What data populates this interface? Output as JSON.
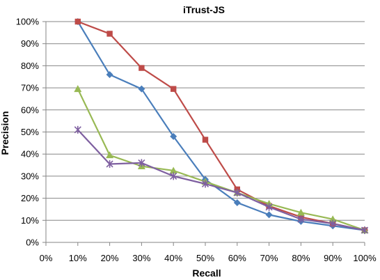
{
  "chart_data": {
    "type": "line",
    "title": "iTrust-JS",
    "xlabel": "Recall",
    "ylabel": "Precision",
    "x_ticks": [
      "0%",
      "10%",
      "20%",
      "30%",
      "40%",
      "50%",
      "60%",
      "70%",
      "80%",
      "90%",
      "100%"
    ],
    "y_ticks": [
      "0%",
      "10%",
      "20%",
      "30%",
      "40%",
      "50%",
      "60%",
      "70%",
      "80%",
      "90%",
      "100%"
    ],
    "xlim": [
      0,
      100
    ],
    "ylim": [
      0,
      100
    ],
    "grid": "horizontal",
    "legend": "none",
    "x": [
      10,
      20,
      30,
      40,
      50,
      60,
      70,
      80,
      90,
      100
    ],
    "series": [
      {
        "marker": "diamond",
        "color": "#4a7ebb",
        "values": [
          100,
          76,
          69.5,
          48,
          28.5,
          18,
          12.5,
          9.5,
          7.5,
          5.5
        ]
      },
      {
        "marker": "square",
        "color": "#be4b48",
        "values": [
          100,
          94.5,
          79,
          69.5,
          46.5,
          24,
          16.5,
          11.5,
          8.5,
          5.5
        ]
      },
      {
        "marker": "triangle",
        "color": "#98b954",
        "values": [
          69.5,
          39.5,
          34.5,
          32.5,
          27.5,
          22.5,
          17.5,
          13.5,
          10.5,
          5.5
        ]
      },
      {
        "marker": "star",
        "color": "#7e5fa0",
        "values": [
          51,
          35.5,
          36,
          30,
          26.5,
          22.5,
          16,
          10.5,
          8.5,
          5.5
        ]
      }
    ]
  }
}
